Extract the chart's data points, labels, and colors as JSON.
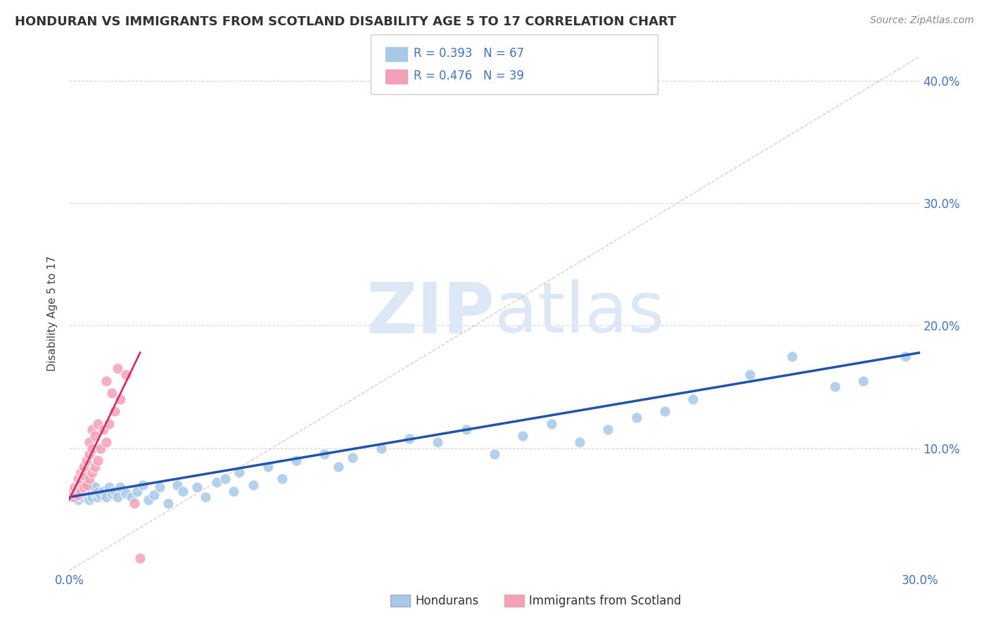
{
  "title": "HONDURAN VS IMMIGRANTS FROM SCOTLAND DISABILITY AGE 5 TO 17 CORRELATION CHART",
  "source_text": "Source: ZipAtlas.com",
  "ylabel": "Disability Age 5 to 17",
  "xlim": [
    0.0,
    0.3
  ],
  "ylim": [
    0.0,
    0.42
  ],
  "xticks": [
    0.0,
    0.05,
    0.1,
    0.15,
    0.2,
    0.25,
    0.3
  ],
  "xticklabels": [
    "0.0%",
    "",
    "",
    "",
    "",
    "",
    "30.0%"
  ],
  "yticks": [
    0.0,
    0.1,
    0.2,
    0.3,
    0.4
  ],
  "yticklabels": [
    "",
    "10.0%",
    "20.0%",
    "30.0%",
    "40.0%"
  ],
  "legend_label1": "Hondurans",
  "legend_label2": "Immigrants from Scotland",
  "blue_color": "#a8c8e8",
  "pink_color": "#f4a0b8",
  "blue_line_color": "#2255aa",
  "pink_line_color": "#cc3366",
  "watermark_color": "#dce8f5",
  "honduran_x": [
    0.001,
    0.002,
    0.002,
    0.003,
    0.003,
    0.004,
    0.004,
    0.005,
    0.005,
    0.006,
    0.006,
    0.007,
    0.007,
    0.008,
    0.008,
    0.009,
    0.009,
    0.01,
    0.01,
    0.011,
    0.012,
    0.013,
    0.014,
    0.015,
    0.016,
    0.017,
    0.018,
    0.02,
    0.022,
    0.024,
    0.026,
    0.028,
    0.03,
    0.032,
    0.035,
    0.038,
    0.04,
    0.045,
    0.048,
    0.052,
    0.055,
    0.058,
    0.06,
    0.065,
    0.07,
    0.075,
    0.08,
    0.09,
    0.095,
    0.1,
    0.11,
    0.12,
    0.13,
    0.14,
    0.15,
    0.16,
    0.17,
    0.18,
    0.19,
    0.2,
    0.21,
    0.22,
    0.24,
    0.255,
    0.27,
    0.28,
    0.295
  ],
  "honduran_y": [
    0.062,
    0.06,
    0.065,
    0.058,
    0.068,
    0.063,
    0.07,
    0.06,
    0.066,
    0.062,
    0.068,
    0.058,
    0.065,
    0.06,
    0.07,
    0.063,
    0.068,
    0.06,
    0.064,
    0.062,
    0.065,
    0.06,
    0.068,
    0.063,
    0.065,
    0.06,
    0.068,
    0.063,
    0.06,
    0.065,
    0.07,
    0.058,
    0.062,
    0.068,
    0.055,
    0.07,
    0.065,
    0.068,
    0.06,
    0.072,
    0.075,
    0.065,
    0.08,
    0.07,
    0.085,
    0.075,
    0.09,
    0.095,
    0.085,
    0.092,
    0.1,
    0.108,
    0.105,
    0.115,
    0.095,
    0.11,
    0.12,
    0.105,
    0.115,
    0.125,
    0.13,
    0.14,
    0.16,
    0.175,
    0.15,
    0.155,
    0.175
  ],
  "scotland_x": [
    0.001,
    0.001,
    0.001,
    0.002,
    0.002,
    0.002,
    0.003,
    0.003,
    0.003,
    0.004,
    0.004,
    0.004,
    0.005,
    0.005,
    0.005,
    0.006,
    0.006,
    0.007,
    0.007,
    0.007,
    0.008,
    0.008,
    0.008,
    0.009,
    0.009,
    0.01,
    0.01,
    0.011,
    0.012,
    0.013,
    0.013,
    0.014,
    0.015,
    0.016,
    0.017,
    0.018,
    0.02,
    0.023,
    0.025
  ],
  "scotland_y": [
    0.06,
    0.062,
    0.065,
    0.06,
    0.063,
    0.068,
    0.062,
    0.068,
    0.075,
    0.065,
    0.072,
    0.08,
    0.068,
    0.078,
    0.085,
    0.07,
    0.09,
    0.075,
    0.095,
    0.105,
    0.08,
    0.1,
    0.115,
    0.085,
    0.11,
    0.09,
    0.12,
    0.1,
    0.115,
    0.105,
    0.155,
    0.12,
    0.145,
    0.13,
    0.165,
    0.14,
    0.16,
    0.055,
    0.01
  ],
  "blue_trend_x": [
    0.0,
    0.3
  ],
  "blue_trend_y": [
    0.06,
    0.178
  ],
  "pink_trend_x": [
    0.0,
    0.025
  ],
  "pink_trend_y": [
    0.058,
    0.178
  ],
  "diag_line_x": [
    0.0,
    0.3
  ],
  "diag_line_y": [
    0.0,
    0.42
  ],
  "figsize": [
    14.06,
    8.92
  ],
  "dpi": 100
}
